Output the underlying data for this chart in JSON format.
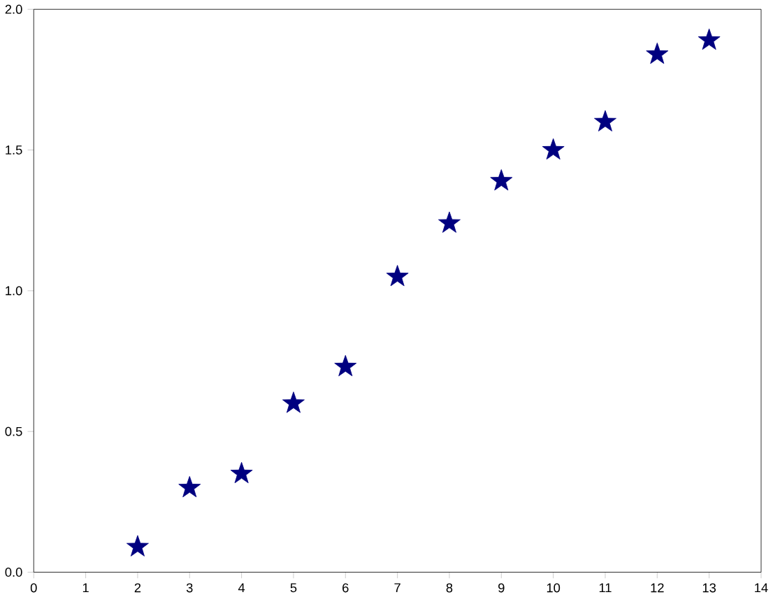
{
  "chart_data": {
    "type": "scatter",
    "x": [
      2,
      3,
      4,
      5,
      6,
      7,
      8,
      9,
      10,
      11,
      12,
      13
    ],
    "values": [
      0.09,
      0.3,
      0.35,
      0.6,
      0.73,
      1.05,
      1.24,
      1.39,
      1.5,
      1.6,
      1.84,
      1.89
    ],
    "color": "#000080",
    "marker": "star",
    "xlim": [
      0,
      14
    ],
    "xticks": [
      0,
      1,
      2,
      3,
      4,
      5,
      6,
      7,
      8,
      9,
      10,
      11,
      12,
      13,
      14
    ],
    "ylim": [
      0,
      2
    ],
    "yticks": [
      {
        "value": 0,
        "label": "0.0"
      },
      {
        "value": 0.5,
        "label": "0.5"
      },
      {
        "value": 1,
        "label": "1.0"
      },
      {
        "value": 1.5,
        "label": "1.5"
      },
      {
        "value": 2,
        "label": "2.0"
      }
    ],
    "grid": false
  }
}
